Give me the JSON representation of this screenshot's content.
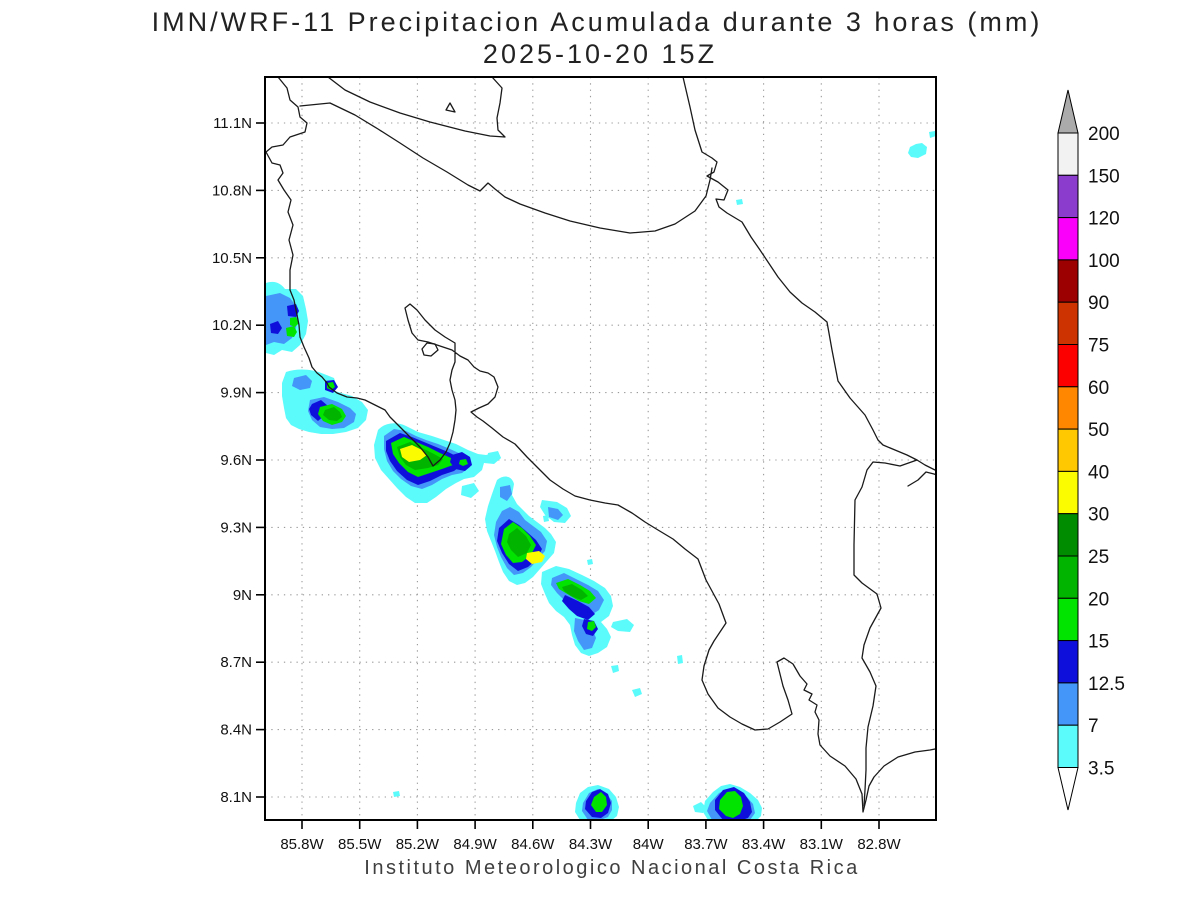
{
  "title": {
    "line1": "IMN/WRF-11 Precipitacion Acumulada durante 3 horas (mm)",
    "line2": "2025-10-20 15Z"
  },
  "caption": "Instituto Meteorologico Nacional Costa Rica",
  "axes": {
    "lat_labels": [
      "11.1N",
      "10.8N",
      "10.5N",
      "10.2N",
      "9.9N",
      "9.6N",
      "9.3N",
      "9N",
      "8.7N",
      "8.4N",
      "8.1N"
    ],
    "lon_labels": [
      "85.8W",
      "85.5W",
      "85.2W",
      "84.9W",
      "84.6W",
      "84.3W",
      "84W",
      "83.7W",
      "83.4W",
      "83.1W",
      "82.8W"
    ]
  },
  "colorbar": {
    "labels_top_to_bottom": [
      "200",
      "150",
      "120",
      "100",
      "90",
      "75",
      "60",
      "50",
      "40",
      "30",
      "25",
      "20",
      "15",
      "12.5",
      "7",
      "3.5"
    ],
    "colors_top_to_bottom": [
      "#f2f2f2",
      "#8c3ccc",
      "#fa00fa",
      "#9c0000",
      "#cc3300",
      "#fc0000",
      "#ff8700",
      "#ffc800",
      "#fcfc00",
      "#008c00",
      "#00b400",
      "#00e400",
      "#0f0fdc",
      "#4496f8",
      "#5bfbfb"
    ],
    "over_arrow_color": "#ababab",
    "under_arrow_color": "#ffffff"
  },
  "palette": {
    "cyan": "#5bfbfb",
    "blue": "#4496f8",
    "darkblue": "#0f0fdc",
    "brightgreen": "#00e400",
    "green": "#00b400",
    "darkgreen": "#008c00",
    "yellow": "#fcfc00",
    "coast": "#1a1a1a",
    "grid": "#9a9a9a"
  }
}
